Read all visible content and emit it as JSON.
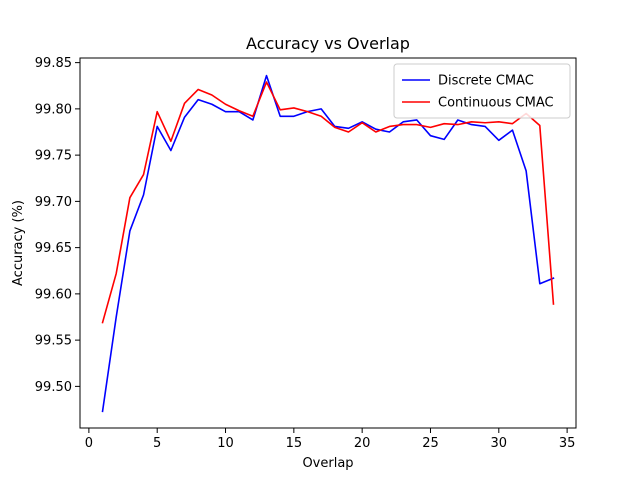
{
  "chart_data": {
    "type": "line",
    "title": "Accuracy vs Overlap",
    "xlabel": "Overlap",
    "ylabel": "Accuracy (%)",
    "xlim": [
      -0.65,
      35.65
    ],
    "ylim": [
      99.455,
      99.855
    ],
    "xticks": [
      0,
      5,
      10,
      15,
      20,
      25,
      30,
      35
    ],
    "xtick_labels": [
      "0",
      "5",
      "10",
      "15",
      "20",
      "25",
      "30",
      "35"
    ],
    "yticks": [
      99.5,
      99.55,
      99.6,
      99.65,
      99.7,
      99.75,
      99.8,
      99.85
    ],
    "ytick_labels": [
      "99.50",
      "99.55",
      "99.60",
      "99.65",
      "99.70",
      "99.75",
      "99.80",
      "99.85"
    ],
    "legend_position": "top-right",
    "x": [
      1,
      2,
      3,
      4,
      5,
      6,
      7,
      8,
      9,
      10,
      11,
      12,
      13,
      14,
      15,
      16,
      17,
      18,
      19,
      20,
      21,
      22,
      23,
      24,
      25,
      26,
      27,
      28,
      29,
      30,
      31,
      32,
      33,
      34
    ],
    "series": [
      {
        "name": "Discrete CMAC",
        "color": "#0000ff",
        "values": [
          99.473,
          99.575,
          99.668,
          99.707,
          99.781,
          99.755,
          99.791,
          99.81,
          99.805,
          99.797,
          99.797,
          99.788,
          99.836,
          99.792,
          99.792,
          99.797,
          99.8,
          99.781,
          99.779,
          99.786,
          99.778,
          99.775,
          99.786,
          99.788,
          99.771,
          99.767,
          99.788,
          99.783,
          99.781,
          99.766,
          99.777,
          99.733,
          99.611,
          99.617
        ]
      },
      {
        "name": "Continuous CMAC",
        "color": "#ff0000",
        "values": [
          99.569,
          99.622,
          99.704,
          99.729,
          99.797,
          99.765,
          99.806,
          99.821,
          99.815,
          99.805,
          99.798,
          99.792,
          99.829,
          99.799,
          99.801,
          99.797,
          99.792,
          99.78,
          99.775,
          99.785,
          99.775,
          99.781,
          99.783,
          99.783,
          99.78,
          99.784,
          99.783,
          99.786,
          99.785,
          99.786,
          99.784,
          99.795,
          99.782,
          99.589
        ]
      }
    ]
  }
}
